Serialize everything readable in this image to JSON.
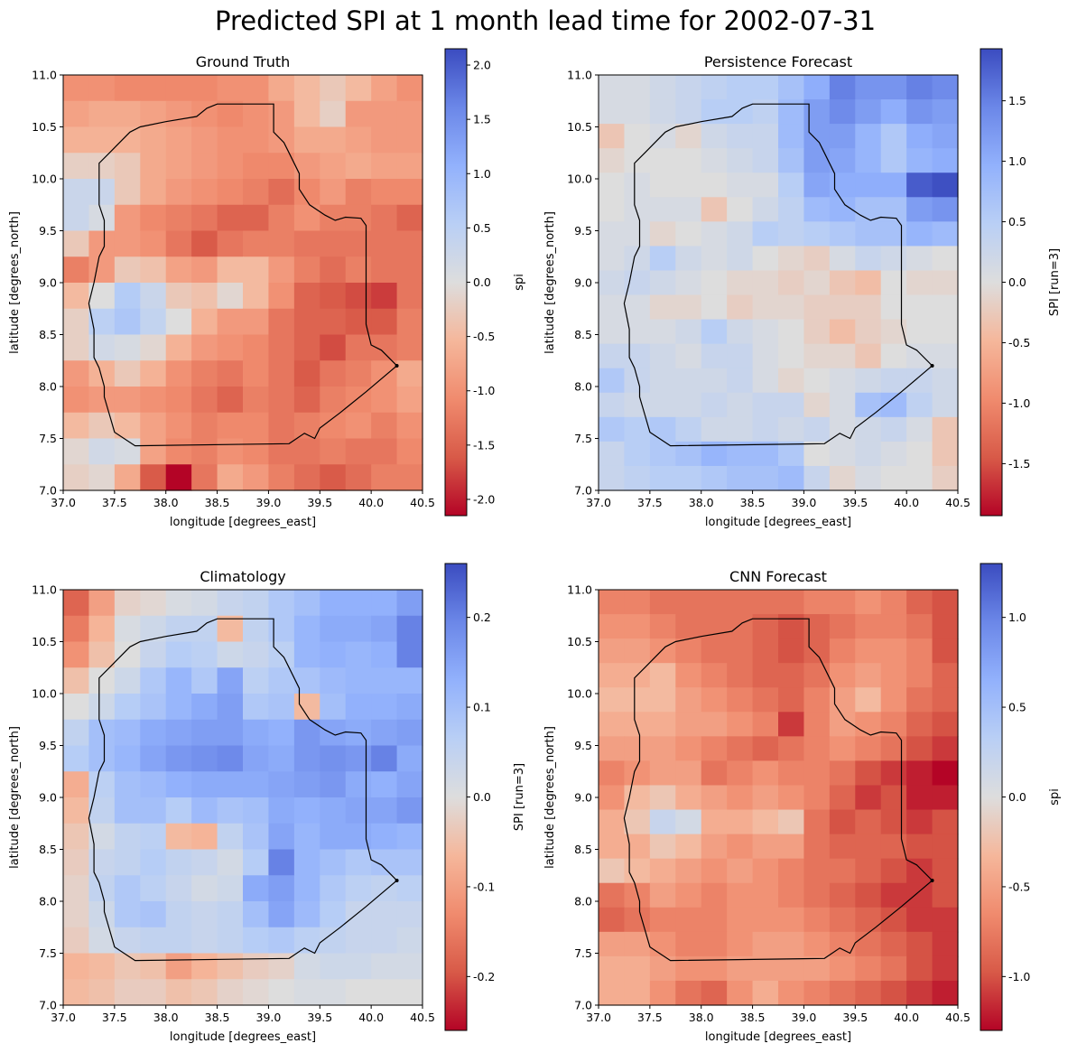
{
  "figure": {
    "title": "Predicted SPI at 1 month lead time for 2002-07-31"
  },
  "colormap": {
    "name": "coolwarm",
    "low": "#b40426",
    "mid": "#dddddd",
    "high": "#3b4cc0"
  },
  "chart_data": [
    {
      "type": "heatmap",
      "title": "Ground Truth",
      "xlabel": "longitude [degrees_east]",
      "ylabel": "latitude [degrees_north]",
      "colorbar_label": "spi",
      "xlim": [
        37.0,
        40.5
      ],
      "ylim": [
        7.0,
        11.0
      ],
      "vmin": -2.15,
      "vmax": 2.15,
      "xticks": [
        "37.0",
        "37.5",
        "38.0",
        "38.5",
        "39.0",
        "39.5",
        "40.0",
        "40.5"
      ],
      "yticks": [
        "7.0",
        "7.5",
        "8.0",
        "8.5",
        "9.0",
        "9.5",
        "10.0",
        "10.5",
        "11.0"
      ],
      "cbar_ticks": [
        "-2.0",
        "-1.5",
        "-1.0",
        "-0.5",
        "0.0",
        "0.5",
        "1.0",
        "1.5",
        "2.0"
      ],
      "values": [
        [
          -1.0,
          -1.0,
          -1.1,
          -1.1,
          -1.1,
          -1.1,
          -1.0,
          -1.0,
          -0.7,
          -0.5,
          -0.3,
          -0.5,
          -0.8,
          -1.0
        ],
        [
          -0.8,
          -0.7,
          -0.7,
          -0.8,
          -0.9,
          -1.0,
          -1.1,
          -1.0,
          -0.9,
          -0.5,
          -0.2,
          -0.9,
          -0.9,
          -0.9
        ],
        [
          -0.6,
          -0.6,
          -0.6,
          -0.7,
          -0.8,
          -0.9,
          -1.0,
          -1.0,
          -0.9,
          -0.7,
          -0.7,
          -0.8,
          -0.9,
          -0.9
        ],
        [
          -0.2,
          -0.2,
          -0.3,
          -0.7,
          -0.8,
          -0.9,
          -1.0,
          -1.1,
          -1.1,
          -0.9,
          -0.8,
          -0.7,
          -0.8,
          -0.8
        ],
        [
          0.3,
          0.3,
          -0.3,
          -0.7,
          -0.9,
          -1.0,
          -1.1,
          -1.2,
          -1.4,
          -1.1,
          -0.9,
          -1.2,
          -1.1,
          -1.1
        ],
        [
          0.3,
          0.1,
          -0.9,
          -1.1,
          -1.2,
          -1.3,
          -1.5,
          -1.5,
          -1.2,
          -1.0,
          -1.2,
          -1.2,
          -1.3,
          -1.5
        ],
        [
          -0.3,
          -0.9,
          -0.9,
          -1.0,
          -1.3,
          -1.6,
          -1.3,
          -1.2,
          -1.2,
          -1.3,
          -1.3,
          -1.3,
          -1.3,
          -1.3
        ],
        [
          -1.2,
          -0.9,
          -0.3,
          -0.4,
          -0.8,
          -0.9,
          -0.5,
          -0.5,
          -0.9,
          -1.2,
          -1.4,
          -1.2,
          -1.3,
          -1.3
        ],
        [
          -0.5,
          0.0,
          0.6,
          0.3,
          -0.3,
          -0.4,
          -0.1,
          -0.5,
          -1.0,
          -1.5,
          -1.6,
          -1.7,
          -1.8,
          -1.3
        ],
        [
          -0.2,
          0.5,
          0.7,
          0.4,
          0.0,
          -0.6,
          -0.9,
          -0.9,
          -1.3,
          -1.5,
          -1.5,
          -1.6,
          -1.6,
          -1.2
        ],
        [
          -0.2,
          0.2,
          0.1,
          -0.1,
          -0.6,
          -0.9,
          -1.0,
          -1.1,
          -1.3,
          -1.5,
          -1.7,
          -1.3,
          -1.3,
          -1.2
        ],
        [
          -0.9,
          -0.6,
          -0.3,
          -0.6,
          -1.0,
          -1.2,
          -1.3,
          -1.1,
          -1.3,
          -1.6,
          -1.3,
          -1.2,
          -1.0,
          -0.7
        ],
        [
          -1.0,
          -0.9,
          -0.9,
          -1.0,
          -1.1,
          -1.3,
          -1.5,
          -1.2,
          -1.3,
          -1.5,
          -1.2,
          -1.1,
          -1.0,
          -0.8
        ],
        [
          -0.5,
          -0.3,
          -0.5,
          -0.8,
          -1.0,
          -1.2,
          -1.1,
          -1.1,
          -1.3,
          -1.2,
          -1.1,
          -1.0,
          -1.2,
          -1.0
        ],
        [
          -0.1,
          0.2,
          0.1,
          -0.8,
          -1.1,
          -1.2,
          -1.0,
          -1.1,
          -1.3,
          -1.3,
          -1.2,
          -1.3,
          -1.3,
          -1.1
        ],
        [
          -0.2,
          -0.1,
          -0.7,
          -1.6,
          -2.15,
          -1.3,
          -0.7,
          -0.9,
          -1.2,
          -1.4,
          -1.6,
          -1.4,
          -1.2,
          -1.2
        ]
      ]
    },
    {
      "type": "heatmap",
      "title": "Persistence Forecast",
      "xlabel": "longitude [degrees_east]",
      "ylabel": "latitude [degrees_north]",
      "colorbar_label": "SPI [run=3]",
      "xlim": [
        37.0,
        40.5
      ],
      "ylim": [
        7.0,
        11.0
      ],
      "vmin": -1.93,
      "vmax": 1.93,
      "xticks": [
        "37.0",
        "37.5",
        "38.0",
        "38.5",
        "39.0",
        "39.5",
        "40.0",
        "40.5"
      ],
      "yticks": [
        "7.0",
        "7.5",
        "8.0",
        "8.5",
        "9.0",
        "9.5",
        "10.0",
        "10.5",
        "11.0"
      ],
      "cbar_ticks": [
        "-1.5",
        "-1.0",
        "-0.5",
        "0.0",
        "0.5",
        "1.0",
        "1.5"
      ],
      "values": [
        [
          0.1,
          0.1,
          0.2,
          0.3,
          0.4,
          0.5,
          0.5,
          0.7,
          1.0,
          1.5,
          1.3,
          1.3,
          1.5,
          1.4
        ],
        [
          0.1,
          0.1,
          0.2,
          0.3,
          0.5,
          0.5,
          0.4,
          0.8,
          1.2,
          1.4,
          1.2,
          1.0,
          1.3,
          1.2
        ],
        [
          -0.3,
          0.0,
          0.1,
          -0.1,
          0.2,
          0.3,
          0.3,
          0.8,
          1.2,
          1.2,
          0.9,
          0.6,
          1.0,
          1.1
        ],
        [
          -0.1,
          0.0,
          0.0,
          0.0,
          0.1,
          0.2,
          0.3,
          0.7,
          1.2,
          1.1,
          0.9,
          0.6,
          0.9,
          1.0
        ],
        [
          0.0,
          0.1,
          0.0,
          0.0,
          0.0,
          0.1,
          0.1,
          0.5,
          1.1,
          1.0,
          1.0,
          1.0,
          1.8,
          1.9
        ],
        [
          0.0,
          0.1,
          0.1,
          0.1,
          -0.3,
          0.0,
          0.2,
          0.4,
          0.8,
          0.9,
          0.7,
          0.7,
          1.2,
          1.3
        ],
        [
          0.1,
          0.1,
          -0.1,
          0.0,
          0.1,
          0.2,
          0.5,
          0.4,
          0.5,
          0.6,
          0.7,
          0.7,
          0.9,
          0.8
        ],
        [
          0.1,
          0.2,
          0.5,
          0.2,
          0.1,
          0.2,
          0.0,
          -0.1,
          -0.2,
          0.1,
          0.3,
          0.2,
          0.1,
          0.0
        ],
        [
          0.2,
          0.3,
          0.2,
          0.1,
          0.0,
          -0.1,
          -0.1,
          -0.2,
          -0.1,
          -0.3,
          -0.4,
          0.0,
          -0.1,
          -0.1
        ],
        [
          0.1,
          0.1,
          -0.1,
          -0.1,
          0.0,
          -0.2,
          -0.1,
          -0.1,
          -0.2,
          -0.2,
          -0.2,
          0.0,
          0.0,
          0.0
        ],
        [
          0.1,
          0.1,
          0.1,
          0.2,
          0.5,
          0.2,
          0.1,
          0.0,
          -0.2,
          -0.4,
          -0.2,
          -0.1,
          0.0,
          0.0
        ],
        [
          0.3,
          0.3,
          0.2,
          0.1,
          0.3,
          0.3,
          0.1,
          0.0,
          -0.1,
          -0.1,
          -0.3,
          0.0,
          0.1,
          0.1
        ],
        [
          0.6,
          0.3,
          0.2,
          0.2,
          0.2,
          0.3,
          0.1,
          -0.1,
          0.0,
          0.1,
          0.2,
          0.3,
          0.3,
          0.2
        ],
        [
          0.3,
          0.2,
          0.2,
          0.2,
          0.3,
          0.2,
          0.3,
          0.3,
          -0.1,
          0.1,
          0.7,
          0.8,
          0.4,
          0.2
        ],
        [
          0.6,
          0.5,
          0.6,
          0.4,
          0.2,
          0.2,
          0.3,
          0.2,
          0.3,
          0.1,
          0.2,
          0.3,
          0.1,
          -0.3
        ],
        [
          0.3,
          0.5,
          0.6,
          0.7,
          0.9,
          0.8,
          0.8,
          0.6,
          0.0,
          0.1,
          0.2,
          0.1,
          0.0,
          -0.3
        ],
        [
          0.3,
          0.4,
          0.5,
          0.5,
          0.6,
          0.7,
          0.7,
          0.8,
          0.3,
          -0.1,
          0.1,
          0.0,
          0.0,
          -0.2
        ]
      ]
    },
    {
      "type": "heatmap",
      "title": "Climatology",
      "xlabel": "longitude [degrees_east]",
      "ylabel": "latitude [degrees_north]",
      "colorbar_label": "SPI [run=3]",
      "xlim": [
        37.0,
        40.5
      ],
      "ylim": [
        7.0,
        11.0
      ],
      "vmin": -0.26,
      "vmax": 0.26,
      "xticks": [
        "37.0",
        "37.5",
        "38.0",
        "38.5",
        "39.0",
        "39.5",
        "40.0",
        "40.5"
      ],
      "yticks": [
        "7.0",
        "7.5",
        "8.0",
        "8.5",
        "9.0",
        "9.5",
        "10.0",
        "10.5",
        "11.0"
      ],
      "cbar_ticks": [
        "-0.2",
        "-0.1",
        "0.0",
        "0.1",
        "0.2"
      ],
      "values": [
        [
          -0.18,
          -0.1,
          -0.02,
          -0.01,
          0.01,
          0.02,
          0.04,
          0.05,
          0.08,
          0.1,
          0.13,
          0.13,
          0.13,
          0.16
        ],
        [
          -0.15,
          -0.07,
          0.01,
          0.03,
          0.05,
          0.05,
          -0.06,
          0.05,
          0.08,
          0.12,
          0.14,
          0.14,
          0.15,
          0.2
        ],
        [
          -0.12,
          -0.05,
          0.0,
          0.04,
          0.07,
          0.06,
          0.03,
          0.04,
          0.06,
          0.12,
          0.13,
          0.12,
          0.13,
          0.2
        ],
        [
          -0.05,
          0.0,
          0.03,
          0.08,
          0.12,
          0.08,
          0.15,
          0.06,
          0.08,
          0.09,
          0.11,
          0.12,
          0.12,
          0.12
        ],
        [
          0.0,
          0.03,
          0.07,
          0.09,
          0.12,
          0.14,
          0.16,
          0.08,
          0.09,
          -0.06,
          0.1,
          0.13,
          0.13,
          0.14
        ],
        [
          0.05,
          0.1,
          0.11,
          0.14,
          0.15,
          0.16,
          0.16,
          0.14,
          0.13,
          0.17,
          0.15,
          0.14,
          0.15,
          0.16
        ],
        [
          0.07,
          0.1,
          0.12,
          0.15,
          0.17,
          0.18,
          0.19,
          0.15,
          0.14,
          0.17,
          0.18,
          0.17,
          0.2,
          0.14
        ],
        [
          -0.08,
          0.06,
          0.1,
          0.11,
          0.13,
          0.14,
          0.14,
          0.14,
          0.15,
          0.16,
          0.17,
          0.14,
          0.13,
          0.15
        ],
        [
          -0.06,
          0.05,
          0.1,
          0.1,
          0.07,
          0.11,
          0.09,
          0.1,
          0.14,
          0.13,
          0.14,
          0.15,
          0.15,
          0.17
        ],
        [
          -0.04,
          0.02,
          0.05,
          0.06,
          -0.06,
          -0.07,
          0.05,
          0.09,
          0.15,
          0.12,
          0.14,
          0.14,
          0.13,
          0.12
        ],
        [
          -0.03,
          0.04,
          0.05,
          0.07,
          0.05,
          0.04,
          0.02,
          0.07,
          0.2,
          0.12,
          0.1,
          0.08,
          0.09,
          0.09
        ],
        [
          -0.02,
          0.05,
          0.08,
          0.06,
          0.04,
          0.02,
          0.03,
          0.14,
          0.16,
          0.12,
          0.08,
          0.06,
          0.05,
          0.06
        ],
        [
          -0.02,
          0.03,
          0.08,
          0.09,
          0.05,
          0.04,
          0.05,
          0.1,
          0.15,
          0.11,
          0.07,
          0.04,
          0.04,
          0.04
        ],
        [
          -0.03,
          0.02,
          0.04,
          0.05,
          0.05,
          0.04,
          0.05,
          0.07,
          0.08,
          0.06,
          0.05,
          0.04,
          0.04,
          0.03
        ],
        [
          -0.07,
          -0.06,
          -0.04,
          -0.05,
          -0.1,
          -0.07,
          -0.05,
          -0.03,
          -0.02,
          0.02,
          0.03,
          0.03,
          0.02,
          0.02
        ],
        [
          -0.06,
          -0.05,
          -0.03,
          -0.03,
          -0.05,
          -0.04,
          -0.02,
          -0.01,
          0.0,
          0.01,
          0.01,
          0.0,
          0.0,
          0.0
        ]
      ]
    },
    {
      "type": "heatmap",
      "title": "CNN Forecast",
      "xlabel": "longitude [degrees_east]",
      "ylabel": "latitude [degrees_north]",
      "colorbar_label": "spi",
      "xlim": [
        37.0,
        40.5
      ],
      "ylim": [
        7.0,
        11.0
      ],
      "vmin": -1.3,
      "vmax": 1.3,
      "xticks": [
        "37.0",
        "37.5",
        "38.0",
        "38.5",
        "39.0",
        "39.5",
        "40.0",
        "40.5"
      ],
      "yticks": [
        "7.0",
        "7.5",
        "8.0",
        "8.5",
        "9.0",
        "9.5",
        "10.0",
        "10.5",
        "11.0"
      ],
      "cbar_ticks": [
        "-1.0",
        "-0.5",
        "0.0",
        "0.5",
        "1.0"
      ],
      "values": [
        [
          -0.7,
          -0.7,
          -0.8,
          -0.8,
          -0.8,
          -0.8,
          -0.8,
          -0.8,
          -0.7,
          -0.7,
          -0.6,
          -0.7,
          -0.9,
          -1.0
        ],
        [
          -0.6,
          -0.6,
          -0.7,
          -0.8,
          -0.8,
          -0.8,
          -0.9,
          -1.0,
          -0.9,
          -0.8,
          -0.7,
          -0.7,
          -0.8,
          -1.0
        ],
        [
          -0.5,
          -0.5,
          -0.6,
          -0.7,
          -0.8,
          -0.8,
          -0.9,
          -1.0,
          -0.9,
          -0.7,
          -0.6,
          -0.6,
          -0.7,
          -1.0
        ],
        [
          -0.4,
          -0.4,
          -0.3,
          -0.6,
          -0.7,
          -0.8,
          -0.9,
          -0.9,
          -0.8,
          -0.6,
          -0.5,
          -0.6,
          -0.7,
          -0.9
        ],
        [
          -0.3,
          -0.3,
          -0.3,
          -0.5,
          -0.6,
          -0.7,
          -0.8,
          -0.9,
          -0.7,
          -0.5,
          -0.3,
          -0.6,
          -0.8,
          -0.9
        ],
        [
          -0.4,
          -0.4,
          -0.4,
          -0.5,
          -0.5,
          -0.6,
          -0.7,
          -1.1,
          -0.7,
          -0.5,
          -0.6,
          -0.7,
          -0.9,
          -1.0
        ],
        [
          -0.5,
          -0.5,
          -0.5,
          -0.6,
          -0.7,
          -0.8,
          -0.9,
          -0.8,
          -0.7,
          -0.6,
          -0.7,
          -0.8,
          -1.0,
          -1.1
        ],
        [
          -0.7,
          -0.6,
          -0.5,
          -0.5,
          -0.8,
          -0.7,
          -0.6,
          -0.7,
          -0.7,
          -0.8,
          -1.0,
          -1.1,
          -1.2,
          -1.3
        ],
        [
          -0.6,
          -0.3,
          -0.2,
          -0.4,
          -0.5,
          -0.6,
          -0.5,
          -0.6,
          -0.7,
          -0.9,
          -1.1,
          -1.0,
          -1.2,
          -1.2
        ],
        [
          -0.4,
          -0.2,
          0.2,
          0.1,
          -0.4,
          -0.4,
          -0.3,
          -0.2,
          -0.8,
          -1.0,
          -0.9,
          -1.0,
          -1.1,
          -1.0
        ],
        [
          -0.4,
          -0.4,
          -0.2,
          -0.3,
          -0.5,
          -0.6,
          -0.5,
          -0.5,
          -0.8,
          -0.9,
          -0.9,
          -0.9,
          -1.0,
          -1.0
        ],
        [
          -0.2,
          -0.3,
          -0.4,
          -0.5,
          -0.6,
          -0.5,
          -0.6,
          -0.7,
          -0.8,
          -0.8,
          -0.9,
          -1.0,
          -1.1,
          -1.0
        ],
        [
          -0.8,
          -0.7,
          -0.5,
          -0.6,
          -0.7,
          -0.6,
          -0.6,
          -0.7,
          -0.8,
          -0.9,
          -1.0,
          -1.1,
          -1.1,
          -1.0
        ],
        [
          -0.9,
          -0.8,
          -0.7,
          -0.7,
          -0.7,
          -0.6,
          -0.6,
          -0.6,
          -0.7,
          -0.8,
          -0.9,
          -1.0,
          -1.1,
          -1.1
        ],
        [
          -0.5,
          -0.5,
          -0.6,
          -0.7,
          -0.7,
          -0.6,
          -0.5,
          -0.5,
          -0.6,
          -0.7,
          -0.8,
          -0.9,
          -1.0,
          -1.1
        ],
        [
          -0.4,
          -0.4,
          -0.5,
          -0.6,
          -0.6,
          -0.5,
          -0.5,
          -0.5,
          -0.5,
          -0.6,
          -0.7,
          -0.8,
          -1.0,
          -1.1
        ],
        [
          -0.4,
          -0.4,
          -0.6,
          -0.8,
          -0.9,
          -0.6,
          -0.4,
          -0.6,
          -0.7,
          -0.8,
          -0.9,
          -1.0,
          -1.1,
          -1.2
        ]
      ]
    }
  ]
}
